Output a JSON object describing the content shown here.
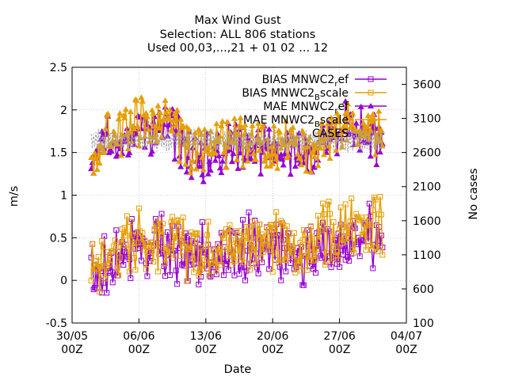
{
  "chart_data": {
    "type": "line",
    "title_lines": [
      "Max Wind Gust",
      "Selection: ALL    806 stations",
      "Used 00,03,...,21 + 01 02 ... 12"
    ],
    "xlabel": "Date",
    "ylabel": "m/s",
    "y2label": "No cases",
    "xlim": [
      "2011-05-30T00:00",
      "2011-07-04T00:00"
    ],
    "ylim": [
      -0.5,
      2.5
    ],
    "y2lim": [
      100,
      3850
    ],
    "x_ticks": [
      {
        "date": "2011-05-30T00:00",
        "line1": "30/05",
        "line2": "00Z"
      },
      {
        "date": "2011-06-06T00:00",
        "line1": "06/06",
        "line2": "00Z"
      },
      {
        "date": "2011-06-13T00:00",
        "line1": "13/06",
        "line2": "00Z"
      },
      {
        "date": "2011-06-20T00:00",
        "line1": "20/06",
        "line2": "00Z"
      },
      {
        "date": "2011-06-27T00:00",
        "line1": "27/06",
        "line2": "00Z"
      },
      {
        "date": "2011-07-04T00:00",
        "line1": "04/07",
        "line2": "00Z"
      }
    ],
    "y_ticks": [
      -0.5,
      0,
      0.5,
      1,
      1.5,
      2,
      2.5
    ],
    "y_tick_labels": [
      "-0.5",
      "0",
      "0.5",
      "1",
      "1.5",
      "2",
      "2.5"
    ],
    "y2_ticks": [
      100,
      600,
      1100,
      1600,
      2100,
      2600,
      3100,
      3600
    ],
    "y2_tick_labels": [
      "100",
      "600",
      "1100",
      "1600",
      "2100",
      "2600",
      "3100",
      "3600"
    ],
    "grid": true,
    "legend_position": "top-right",
    "data_range": [
      "2011-06-01T00:00",
      "2011-07-01T12:00"
    ],
    "series": [
      {
        "name": "BIAS MNWC2_ref",
        "legend": {
          "main": "BIAS MNWC2",
          "sub": "r",
          "tail": "ef"
        },
        "axis": "y",
        "color": "#9400d3",
        "marker": "square",
        "knots": [
          [
            "2011-06-01T00:00",
            0.05
          ],
          [
            "2011-06-02T00:00",
            0.1
          ],
          [
            "2011-06-03T00:00",
            0.2
          ],
          [
            "2011-06-04T00:00",
            0.3
          ],
          [
            "2011-06-05T00:00",
            0.4
          ],
          [
            "2011-06-06T00:00",
            0.45
          ],
          [
            "2011-06-07T00:00",
            0.35
          ],
          [
            "2011-06-08T00:00",
            0.4
          ],
          [
            "2011-06-09T00:00",
            0.35
          ],
          [
            "2011-06-10T00:00",
            0.3
          ],
          [
            "2011-06-11T00:00",
            0.3
          ],
          [
            "2011-06-12T00:00",
            0.25
          ],
          [
            "2011-06-13T00:00",
            0.3
          ],
          [
            "2011-06-14T00:00",
            0.35
          ],
          [
            "2011-06-15T00:00",
            0.35
          ],
          [
            "2011-06-16T00:00",
            0.3
          ],
          [
            "2011-06-17T00:00",
            0.4
          ],
          [
            "2011-06-18T00:00",
            0.4
          ],
          [
            "2011-06-19T00:00",
            0.3
          ],
          [
            "2011-06-20T00:00",
            0.35
          ],
          [
            "2011-06-21T00:00",
            0.35
          ],
          [
            "2011-06-22T00:00",
            0.3
          ],
          [
            "2011-06-23T00:00",
            0.25
          ],
          [
            "2011-06-24T00:00",
            0.3
          ],
          [
            "2011-06-25T00:00",
            0.4
          ],
          [
            "2011-06-26T00:00",
            0.45
          ],
          [
            "2011-06-27T00:00",
            0.4
          ],
          [
            "2011-06-28T00:00",
            0.45
          ],
          [
            "2011-06-29T00:00",
            0.5
          ],
          [
            "2011-06-30T00:00",
            0.55
          ],
          [
            "2011-07-01T00:00",
            0.5
          ]
        ]
      },
      {
        "name": "BIAS MNWC2_Bscale",
        "legend": {
          "main": "BIAS MNWC2",
          "sub": "B",
          "tail": "scale"
        },
        "axis": "y",
        "color": "#e69f00",
        "marker": "square",
        "knots": [
          [
            "2011-06-01T00:00",
            0.1
          ],
          [
            "2011-06-02T00:00",
            0.2
          ],
          [
            "2011-06-03T00:00",
            0.3
          ],
          [
            "2011-06-04T00:00",
            0.4
          ],
          [
            "2011-06-05T00:00",
            0.5
          ],
          [
            "2011-06-06T00:00",
            0.55
          ],
          [
            "2011-06-07T00:00",
            0.45
          ],
          [
            "2011-06-08T00:00",
            0.5
          ],
          [
            "2011-06-09T00:00",
            0.45
          ],
          [
            "2011-06-10T00:00",
            0.4
          ],
          [
            "2011-06-11T00:00",
            0.4
          ],
          [
            "2011-06-12T00:00",
            0.35
          ],
          [
            "2011-06-13T00:00",
            0.4
          ],
          [
            "2011-06-14T00:00",
            0.45
          ],
          [
            "2011-06-15T00:00",
            0.45
          ],
          [
            "2011-06-16T00:00",
            0.4
          ],
          [
            "2011-06-17T00:00",
            0.5
          ],
          [
            "2011-06-18T00:00",
            0.5
          ],
          [
            "2011-06-19T00:00",
            0.4
          ],
          [
            "2011-06-20T00:00",
            0.45
          ],
          [
            "2011-06-21T00:00",
            0.45
          ],
          [
            "2011-06-22T00:00",
            0.4
          ],
          [
            "2011-06-23T00:00",
            0.35
          ],
          [
            "2011-06-24T00:00",
            0.4
          ],
          [
            "2011-06-25T00:00",
            0.5
          ],
          [
            "2011-06-26T00:00",
            0.55
          ],
          [
            "2011-06-27T00:00",
            0.5
          ],
          [
            "2011-06-28T00:00",
            0.55
          ],
          [
            "2011-06-29T00:00",
            0.6
          ],
          [
            "2011-06-30T00:00",
            0.65
          ],
          [
            "2011-07-01T00:00",
            0.6
          ]
        ]
      },
      {
        "name": "MAE MNWC2_ref",
        "legend": {
          "main": "MAE MNWC2",
          "sub": "r",
          "tail": "ef"
        },
        "axis": "y",
        "color": "#9400d3",
        "marker": "triangle",
        "knots": [
          [
            "2011-06-01T00:00",
            1.3
          ],
          [
            "2011-06-02T00:00",
            1.55
          ],
          [
            "2011-06-03T00:00",
            1.65
          ],
          [
            "2011-06-04T00:00",
            1.7
          ],
          [
            "2011-06-05T00:00",
            1.75
          ],
          [
            "2011-06-06T00:00",
            1.85
          ],
          [
            "2011-06-07T00:00",
            1.8
          ],
          [
            "2011-06-08T00:00",
            1.75
          ],
          [
            "2011-06-09T00:00",
            1.8
          ],
          [
            "2011-06-10T00:00",
            1.7
          ],
          [
            "2011-06-11T00:00",
            1.55
          ],
          [
            "2011-06-12T00:00",
            1.45
          ],
          [
            "2011-06-13T00:00",
            1.45
          ],
          [
            "2011-06-14T00:00",
            1.5
          ],
          [
            "2011-06-15T00:00",
            1.55
          ],
          [
            "2011-06-16T00:00",
            1.6
          ],
          [
            "2011-06-17T00:00",
            1.6
          ],
          [
            "2011-06-18T00:00",
            1.55
          ],
          [
            "2011-06-19T00:00",
            1.55
          ],
          [
            "2011-06-20T00:00",
            1.5
          ],
          [
            "2011-06-21T00:00",
            1.55
          ],
          [
            "2011-06-22T00:00",
            1.5
          ],
          [
            "2011-06-23T00:00",
            1.5
          ],
          [
            "2011-06-24T00:00",
            1.45
          ],
          [
            "2011-06-25T00:00",
            1.55
          ],
          [
            "2011-06-26T00:00",
            1.65
          ],
          [
            "2011-06-27T00:00",
            1.75
          ],
          [
            "2011-06-28T00:00",
            1.85
          ],
          [
            "2011-06-29T00:00",
            1.8
          ],
          [
            "2011-06-30T00:00",
            1.7
          ],
          [
            "2011-07-01T00:00",
            1.65
          ]
        ]
      },
      {
        "name": "MAE MNWC2_Bscale",
        "legend": {
          "main": "MAE MNWC2",
          "sub": "B",
          "tail": "scale"
        },
        "axis": "y",
        "color": "#e69f00",
        "marker": "triangle",
        "knots": [
          [
            "2011-06-01T00:00",
            1.35
          ],
          [
            "2011-06-02T00:00",
            1.6
          ],
          [
            "2011-06-03T00:00",
            1.7
          ],
          [
            "2011-06-04T00:00",
            1.75
          ],
          [
            "2011-06-05T00:00",
            1.8
          ],
          [
            "2011-06-06T00:00",
            1.9
          ],
          [
            "2011-06-07T00:00",
            1.85
          ],
          [
            "2011-06-08T00:00",
            1.8
          ],
          [
            "2011-06-09T00:00",
            1.85
          ],
          [
            "2011-06-10T00:00",
            1.75
          ],
          [
            "2011-06-11T00:00",
            1.6
          ],
          [
            "2011-06-12T00:00",
            1.5
          ],
          [
            "2011-06-13T00:00",
            1.5
          ],
          [
            "2011-06-14T00:00",
            1.55
          ],
          [
            "2011-06-15T00:00",
            1.6
          ],
          [
            "2011-06-16T00:00",
            1.65
          ],
          [
            "2011-06-17T00:00",
            1.65
          ],
          [
            "2011-06-18T00:00",
            1.6
          ],
          [
            "2011-06-19T00:00",
            1.6
          ],
          [
            "2011-06-20T00:00",
            1.55
          ],
          [
            "2011-06-21T00:00",
            1.6
          ],
          [
            "2011-06-22T00:00",
            1.55
          ],
          [
            "2011-06-23T00:00",
            1.55
          ],
          [
            "2011-06-24T00:00",
            1.5
          ],
          [
            "2011-06-25T00:00",
            1.6
          ],
          [
            "2011-06-26T00:00",
            1.7
          ],
          [
            "2011-06-27T00:00",
            1.8
          ],
          [
            "2011-06-28T00:00",
            1.9
          ],
          [
            "2011-06-29T00:00",
            1.85
          ],
          [
            "2011-06-30T00:00",
            1.75
          ],
          [
            "2011-07-01T00:00",
            1.7
          ]
        ]
      },
      {
        "name": "CASES",
        "legend": {
          "main": "CASES",
          "sub": "",
          "tail": ""
        },
        "axis": "y2",
        "color": "#a0a0a0",
        "marker": "none",
        "dashed": true,
        "low": 2600,
        "high": 2950,
        "knots": [
          [
            "2011-06-01T00:00",
            2700
          ],
          [
            "2011-06-08T00:00",
            2760
          ],
          [
            "2011-06-15T00:00",
            2740
          ],
          [
            "2011-06-22T00:00",
            2720
          ],
          [
            "2011-06-29T00:00",
            2780
          ],
          [
            "2011-07-01T00:00",
            2760
          ]
        ]
      }
    ]
  }
}
